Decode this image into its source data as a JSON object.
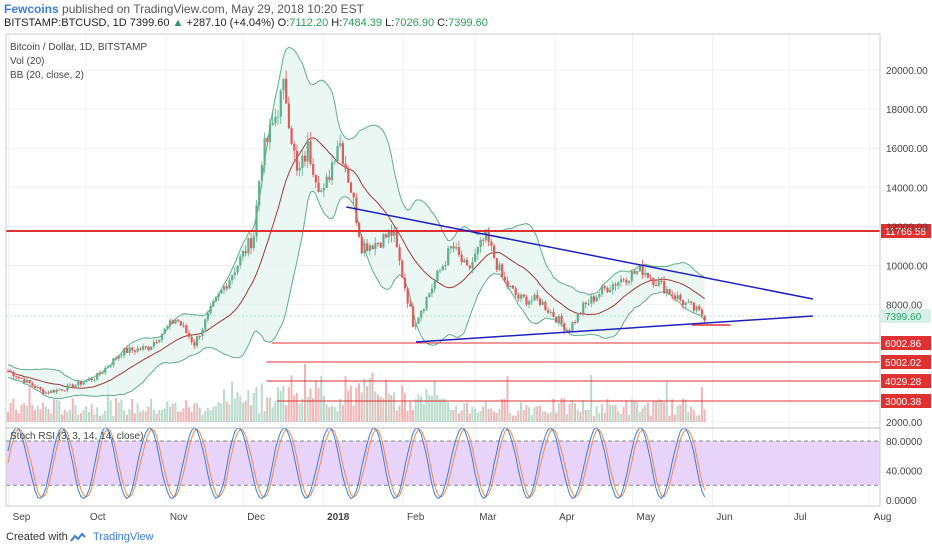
{
  "header": {
    "author": "Fewcoins",
    "published": " published on TradingView.com, May 29, 2018 10:20 EST",
    "symbol": "BITSTAMP:BTCUSD, 1D",
    "last": "7399.60",
    "arrow": "▲",
    "change": "+287.10 (+4.04%)",
    "o_label": "O:",
    "o": "7112.20",
    "h_label": "H:",
    "h": "7484.39",
    "l_label": "L:",
    "l": "7026.90",
    "c_label": "C:",
    "c": "7399.60"
  },
  "legend": {
    "line1": "Bitcoin / Dollar, 1D, BITSTAMP",
    "line2": "Vol (20)",
    "line3": "BB (20, close, 2)",
    "stoch": "Stoch RSI (3, 3, 14, 14, close)"
  },
  "footer": {
    "created": "Created with",
    "brand": "TradingView"
  },
  "colors": {
    "up": "#5fae8c",
    "down": "#e05a5a",
    "bb_band": "#5fae8c",
    "bb_mid": "#a03a3a",
    "bb_fill": "#e6f5ef",
    "resistance": "#e03030",
    "trend": "#2020c0",
    "stoch_bg": "#e8d4fb",
    "stoch_k": "#3a7ed8",
    "stoch_d": "#f08a4a",
    "price_tag": "#d8f0e6",
    "level_tag": "#e03030"
  },
  "chart_data": {
    "type": "candlestick",
    "x_ticks": [
      "Sep",
      "Oct",
      "Nov",
      "Dec",
      "2018",
      "Feb",
      "Mar",
      "Apr",
      "May",
      "Jun",
      "Jul",
      "Aug"
    ],
    "y_ticks": [
      "20000.00",
      "18000.00",
      "16000.00",
      "14000.00",
      "12000.00",
      "10000.00",
      "8000.00",
      "2000.00"
    ],
    "stoch_ticks": [
      "80.0000",
      "40.0000",
      "0.0000"
    ],
    "stoch_levels": [
      80,
      20
    ],
    "resistance": {
      "price": 11766.58,
      "label": "11766.58"
    },
    "current_price": {
      "price": 7399.6,
      "label": "7399.60"
    },
    "support_levels": [
      {
        "price": 6002.86,
        "label": "6002.86"
      },
      {
        "price": 5002.02,
        "label": "5002.02"
      },
      {
        "price": 4029.28,
        "label": "4029.28"
      },
      {
        "price": 3000.38,
        "label": "3000.38"
      }
    ],
    "trendlines": [
      {
        "from": [
          "2018-01-10",
          12950
        ],
        "to": [
          "2018-07-10",
          8200
        ]
      },
      {
        "from": [
          "2018-02-06",
          6000
        ],
        "to": [
          "2018-07-10",
          7500
        ]
      }
    ],
    "close_path": [
      [
        "2017-09-01",
        4600
      ],
      [
        "2017-09-15",
        3500
      ],
      [
        "2017-09-25",
        3800
      ],
      [
        "2017-10-05",
        4300
      ],
      [
        "2017-10-15",
        5600
      ],
      [
        "2017-10-25",
        5800
      ],
      [
        "2017-11-05",
        7300
      ],
      [
        "2017-11-12",
        6000
      ],
      [
        "2017-11-20",
        8100
      ],
      [
        "2017-11-28",
        9900
      ],
      [
        "2017-12-05",
        11500
      ],
      [
        "2017-12-08",
        15500
      ],
      [
        "2017-12-12",
        17000
      ],
      [
        "2017-12-17",
        19200
      ],
      [
        "2017-12-22",
        14500
      ],
      [
        "2017-12-26",
        16000
      ],
      [
        "2018-01-01",
        13500
      ],
      [
        "2018-01-07",
        16600
      ],
      [
        "2018-01-12",
        13800
      ],
      [
        "2018-01-16",
        11000
      ],
      [
        "2018-01-22",
        11200
      ],
      [
        "2018-01-28",
        11700
      ],
      [
        "2018-02-05",
        7000
      ],
      [
        "2018-02-10",
        8300
      ],
      [
        "2018-02-20",
        11000
      ],
      [
        "2018-02-26",
        9700
      ],
      [
        "2018-03-05",
        11500
      ],
      [
        "2018-03-12",
        9200
      ],
      [
        "2018-03-18",
        8300
      ],
      [
        "2018-03-26",
        8200
      ],
      [
        "2018-04-06",
        6700
      ],
      [
        "2018-04-12",
        7900
      ],
      [
        "2018-04-20",
        8800
      ],
      [
        "2018-04-28",
        9400
      ],
      [
        "2018-05-05",
        9800
      ],
      [
        "2018-05-10",
        9200
      ],
      [
        "2018-05-15",
        8700
      ],
      [
        "2018-05-22",
        8000
      ],
      [
        "2018-05-29",
        7400
      ]
    ],
    "volume_note": "Vol (20)",
    "projection_end": "2018-07-10"
  }
}
